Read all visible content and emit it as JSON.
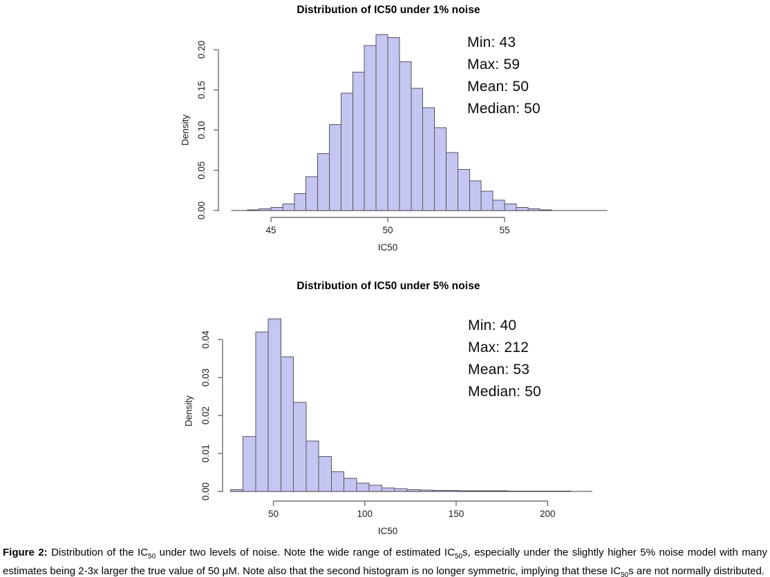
{
  "colors": {
    "bar_fill": "#c5c5f1",
    "bar_border": "#52525f",
    "axis": "#6f6f6f",
    "tick_text": "#1c1c1c",
    "text": "#000000",
    "background": "#ffffff"
  },
  "chart_data": [
    {
      "type": "bar",
      "subtype": "histogram",
      "title": "Distribution of IC50 under 1% noise",
      "xlabel": "IC50",
      "ylabel": "Density",
      "bin_start": 44.0,
      "bin_width": 0.5,
      "densities": [
        0.001,
        0.002,
        0.004,
        0.008,
        0.021,
        0.042,
        0.071,
        0.107,
        0.146,
        0.172,
        0.205,
        0.219,
        0.215,
        0.185,
        0.152,
        0.128,
        0.103,
        0.072,
        0.051,
        0.037,
        0.024,
        0.013,
        0.008,
        0.004,
        0.002,
        0.001
      ],
      "x_ticks": [
        45,
        50,
        55
      ],
      "y_ticks": [
        0.0,
        0.05,
        0.1,
        0.15,
        0.2
      ],
      "xlim": [
        43,
        59.5
      ],
      "ylim": [
        0,
        0.22
      ],
      "grid": false,
      "zero_line_extent": [
        43.3,
        59.4
      ],
      "stats": {
        "min": 43,
        "max": 59,
        "mean": 50,
        "median": 50
      },
      "stats_lines": [
        "Min: 43",
        "Max: 59",
        "Mean: 50",
        "Median: 50"
      ]
    },
    {
      "type": "bar",
      "subtype": "histogram",
      "title": "Distribution of IC50 under 5% noise",
      "xlabel": "IC50",
      "ylabel": "Density",
      "bin_start": 26.5,
      "bin_width": 6.9,
      "densities": [
        0.0005,
        0.0145,
        0.042,
        0.0455,
        0.0355,
        0.0235,
        0.0133,
        0.0092,
        0.0052,
        0.0035,
        0.0022,
        0.0016,
        0.0009,
        0.0007,
        0.0005,
        0.0004,
        0.0003,
        0.0003,
        0.0002,
        0.0002,
        0.0002,
        0.0002,
        0.0001,
        0.0001,
        0.0001,
        0.0001,
        0.0001
      ],
      "x_ticks": [
        50,
        100,
        150,
        200
      ],
      "y_ticks": [
        0.0,
        0.01,
        0.02,
        0.03,
        0.04
      ],
      "xlim": [
        25,
        228
      ],
      "ylim": [
        0,
        0.047
      ],
      "grid": false,
      "zero_line_extent": [
        26.5,
        224.5
      ],
      "stats": {
        "min": 40,
        "max": 212,
        "mean": 53,
        "median": 50
      },
      "stats_lines": [
        "Min: 40",
        "Max: 212",
        "Mean: 53",
        "Median: 50"
      ]
    }
  ],
  "figure": {
    "caption_parts": [
      {
        "text": "Figure 2:",
        "style": "b"
      },
      {
        "text": " Distribution of the IC",
        "style": ""
      },
      {
        "text": "50",
        "style": "sub"
      },
      {
        "text": " under two levels of noise. Note the wide range of estimated IC",
        "style": ""
      },
      {
        "text": "50",
        "style": "sub"
      },
      {
        "text": "s, especially under the slightly higher 5% noise model with many estimates being 2-3x larger the true value of 50 μM. Note also that the second histogram is no longer symmetric, implying that these IC",
        "style": ""
      },
      {
        "text": "50",
        "style": "sub"
      },
      {
        "text": "s are not normally distributed.",
        "style": ""
      }
    ]
  }
}
